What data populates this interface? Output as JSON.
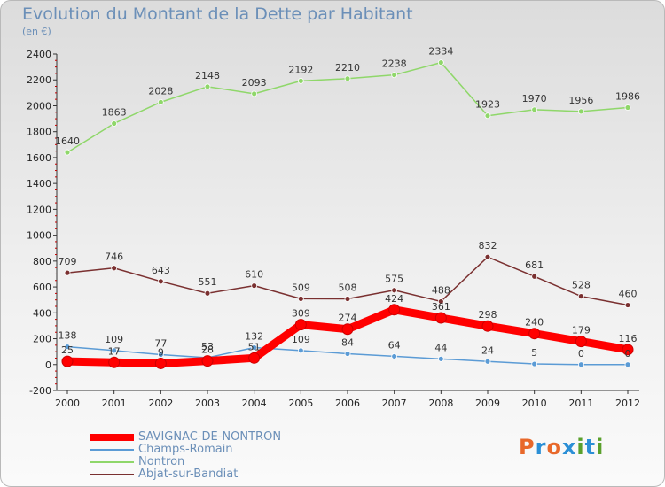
{
  "title": "Evolution du Montant de la Dette par Habitant",
  "subtitle": "(en €)",
  "brand": {
    "text": "Proxiti",
    "colors": [
      "#e8682a",
      "#2b8fd6",
      "#e8682a",
      "#2b8fd6",
      "#5aa02c",
      "#2b8fd6",
      "#5aa02c"
    ]
  },
  "chart_data": {
    "type": "line",
    "x": [
      "2000",
      "2001",
      "2002",
      "2003",
      "2004",
      "2005",
      "2006",
      "2007",
      "2008",
      "2009",
      "2010",
      "2011",
      "2012"
    ],
    "ylim": [
      -200,
      2400
    ],
    "yticks": [
      -200,
      0,
      200,
      400,
      600,
      800,
      1000,
      1200,
      1400,
      1600,
      1800,
      2000,
      2200,
      2400
    ],
    "grid": false,
    "legend_position": "bottom-left",
    "series": [
      {
        "name": "SAVIGNAC-DE-NONTRON",
        "color": "#ff0000",
        "values": [
          25,
          17,
          9,
          28,
          51,
          309,
          274,
          424,
          361,
          298,
          240,
          179,
          116
        ],
        "labels": [
          "25",
          "17",
          "9",
          "28",
          "51",
          "309",
          "274",
          "424",
          "361",
          "298",
          "240",
          "179",
          "116"
        ]
      },
      {
        "name": "Champs-Romain",
        "color": "#5b9bd5",
        "values": [
          138,
          109,
          77,
          53,
          132,
          109,
          84,
          64,
          44,
          24,
          5,
          0,
          0
        ],
        "labels": [
          "138",
          "109",
          "77",
          "53",
          "132",
          "109",
          "84",
          "64",
          "44",
          "24",
          "5",
          "0",
          "0"
        ]
      },
      {
        "name": "Nontron",
        "color": "#8fd76a",
        "values": [
          1640,
          1863,
          2028,
          2148,
          2093,
          2192,
          2210,
          2238,
          2334,
          1923,
          1970,
          1956,
          1986
        ],
        "labels": [
          "1640",
          "1863",
          "2028",
          "2148",
          "2093",
          "2192",
          "2210",
          "2238",
          "2334",
          "1923",
          "1970",
          "1956",
          "1986"
        ]
      },
      {
        "name": "Abjat-sur-Bandiat",
        "color": "#7a3030",
        "values": [
          709,
          746,
          643,
          551,
          610,
          509,
          508,
          575,
          488,
          832,
          681,
          528,
          460
        ],
        "labels": [
          "709",
          "746",
          "643",
          "551",
          "610",
          "509",
          "508",
          "575",
          "488",
          "832",
          "681",
          "528",
          "460"
        ]
      }
    ]
  }
}
